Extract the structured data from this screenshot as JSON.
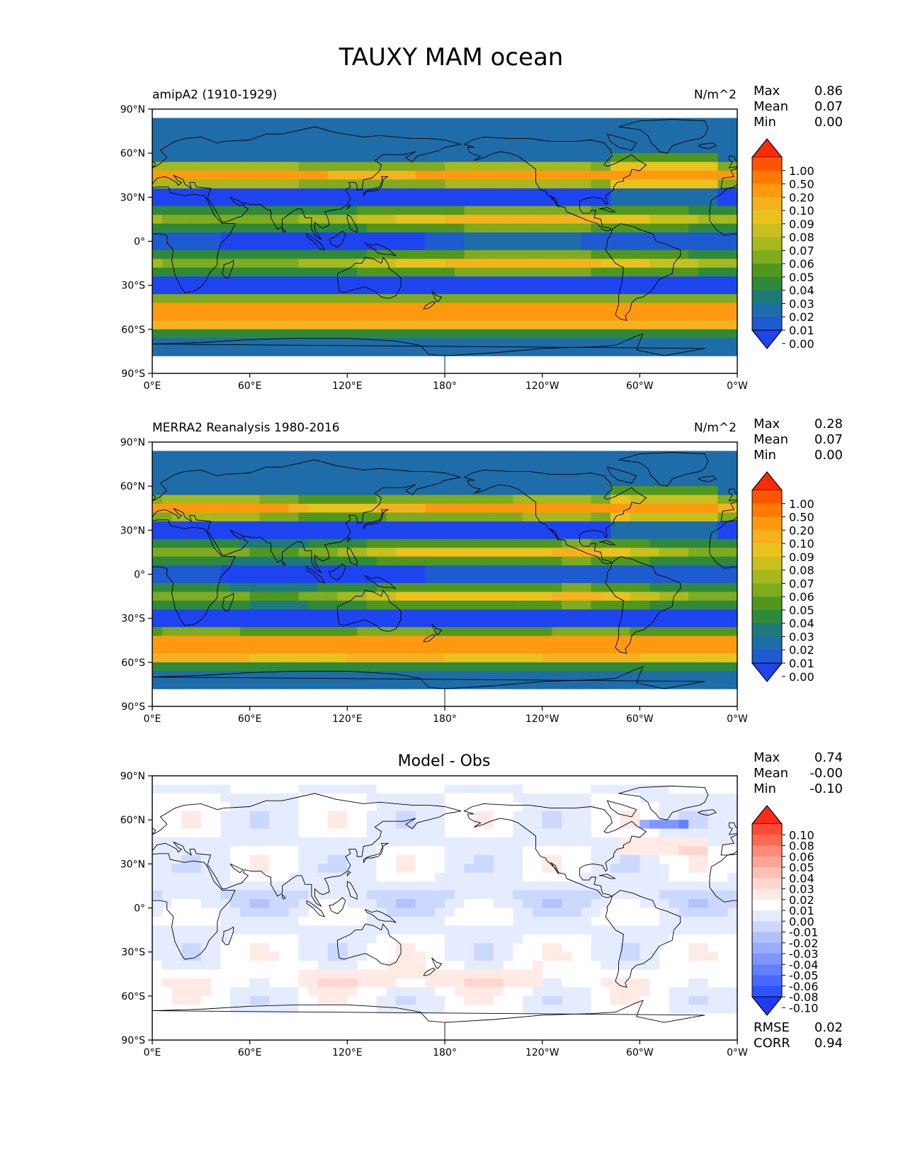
{
  "figure": {
    "title": "TAUXY MAM ocean"
  },
  "axes": {
    "lat_ticks": [
      "90°N",
      "60°N",
      "30°N",
      "0°",
      "30°S",
      "60°S",
      "90°S"
    ],
    "lon_ticks": [
      "0°E",
      "60°E",
      "120°E",
      "180°",
      "120°W",
      "60°W",
      "0°W"
    ]
  },
  "panels": [
    {
      "id": "model",
      "left_title": "amipA2 (1910-1929)",
      "center_title": "",
      "right_title": "N/m^2",
      "stats": [
        {
          "label": "Max",
          "value": "0.86"
        },
        {
          "label": "Mean",
          "value": "0.07"
        },
        {
          "label": "Min",
          "value": "0.00"
        }
      ],
      "footer_stats": []
    },
    {
      "id": "obs",
      "left_title": "MERRA2 Reanalysis 1980-2016",
      "center_title": "",
      "right_title": "N/m^2",
      "stats": [
        {
          "label": "Max",
          "value": "0.28"
        },
        {
          "label": "Mean",
          "value": "0.07"
        },
        {
          "label": "Min",
          "value": "0.00"
        }
      ],
      "footer_stats": []
    },
    {
      "id": "diff",
      "left_title": "",
      "center_title": "Model - Obs",
      "right_title": "",
      "stats": [
        {
          "label": "Max",
          "value": "0.74"
        },
        {
          "label": "Mean",
          "value": "-0.00"
        },
        {
          "label": "Min",
          "value": "-0.10"
        }
      ],
      "footer_stats": [
        {
          "label": "RMSE",
          "value": "0.02"
        },
        {
          "label": "CORR",
          "value": "0.94"
        }
      ]
    }
  ],
  "colorbars": {
    "magnitude": {
      "labels": [
        "1.00",
        "0.50",
        "0.20",
        "0.10",
        "0.09",
        "0.08",
        "0.07",
        "0.06",
        "0.05",
        "0.04",
        "0.03",
        "0.02",
        "0.01",
        "0.00"
      ],
      "colors": [
        "#ff2a00",
        "#ff5500",
        "#ff7a00",
        "#ff9a10",
        "#f5b21e",
        "#e9c21e",
        "#c8c01e",
        "#a6b81e",
        "#7fab1e",
        "#50971e",
        "#2e8a3a",
        "#1e7a78",
        "#1e6ca8",
        "#1e5ad0",
        "#1e44f0"
      ]
    },
    "difference": {
      "labels": [
        "0.10",
        "0.08",
        "0.06",
        "0.05",
        "0.04",
        "0.03",
        "0.02",
        "0.01",
        "0.00",
        "-0.01",
        "-0.02",
        "-0.03",
        "-0.04",
        "-0.05",
        "-0.06",
        "-0.08",
        "-0.10"
      ],
      "colors": [
        "#ff2a1a",
        "#ff4a36",
        "#ff6a54",
        "#ff8a76",
        "#ffa596",
        "#ffc0b4",
        "#ffd6ce",
        "#ffeae6",
        "#ffffff",
        "#e6ecff",
        "#ccd8ff",
        "#b2c2ff",
        "#98adff",
        "#7e96ff",
        "#6380ff",
        "#4868ff",
        "#2d52ff",
        "#1e3cf5"
      ]
    }
  }
}
